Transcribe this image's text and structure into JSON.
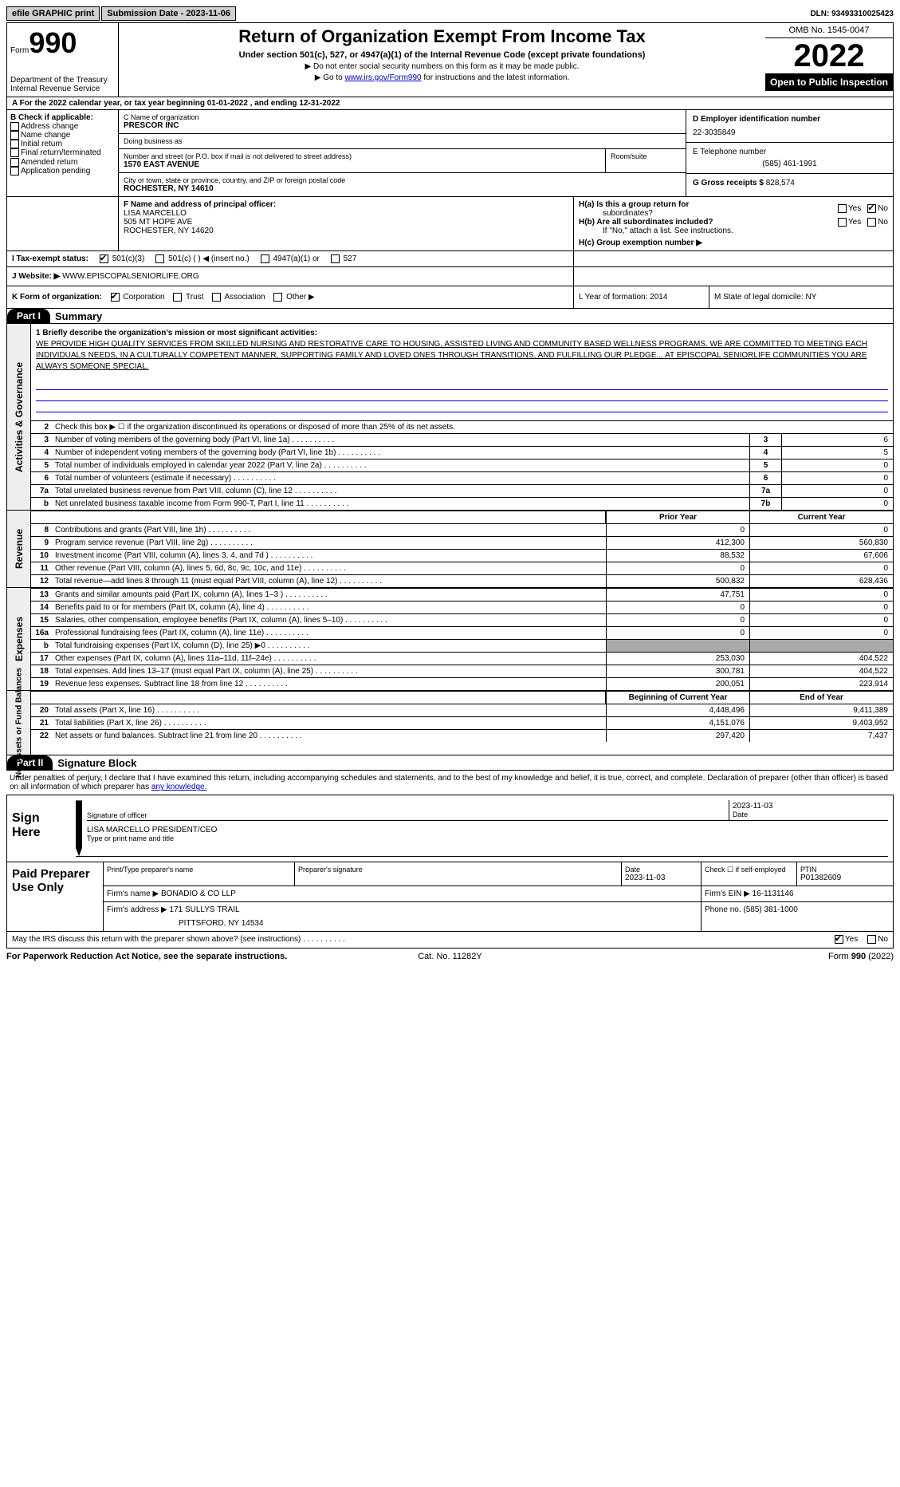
{
  "topbar": {
    "efile": "efile GRAPHIC print",
    "submission": "Submission Date - 2023-11-06",
    "dln_label": "DLN:",
    "dln": "93493310025423"
  },
  "header": {
    "form_label": "Form",
    "form_num": "990",
    "dept": "Department of the Treasury",
    "irs": "Internal Revenue Service",
    "title": "Return of Organization Exempt From Income Tax",
    "sub1": "Under section 501(c), 527, or 4947(a)(1) of the Internal Revenue Code (except private foundations)",
    "sub2": "▶ Do not enter social security numbers on this form as it may be made public.",
    "sub3": "▶ Go to ",
    "link": "www.irs.gov/Form990",
    "sub3b": " for instructions and the latest information.",
    "omb": "OMB No. 1545-0047",
    "year": "2022",
    "open": "Open to Public Inspection"
  },
  "row_a": "A For the 2022 calendar year, or tax year beginning 01-01-2022    , and ending 12-31-2022",
  "col_b": {
    "hdr": "B Check if applicable:",
    "items": [
      "Address change",
      "Name change",
      "Initial return",
      "Final return/terminated",
      "Amended return",
      "Application pending"
    ]
  },
  "col_c": {
    "name_lbl": "C Name of organization",
    "name": "PRESCOR INC",
    "dba_lbl": "Doing business as",
    "dba": "",
    "street_lbl": "Number and street (or P.O. box if mail is not delivered to street address)",
    "street": "1570 EAST AVENUE",
    "room_lbl": "Room/suite",
    "city_lbl": "City or town, state or province, country, and ZIP or foreign postal code",
    "city": "ROCHESTER, NY  14610"
  },
  "col_d": {
    "ein_lbl": "D Employer identification number",
    "ein": "22-3035849",
    "phone_lbl": "E Telephone number",
    "phone": "(585) 461-1991",
    "gross_lbl": "G Gross receipts $",
    "gross": "828,574"
  },
  "col_f": {
    "lbl": "F  Name and address of principal officer:",
    "name": "LISA MARCELLO",
    "addr1": "505 MT HOPE AVE",
    "addr2": "ROCHESTER, NY  14620"
  },
  "col_h": {
    "ha": "H(a)  Is this a group return for",
    "ha2": "subordinates?",
    "hb": "H(b)  Are all subordinates included?",
    "hb2": "If \"No,\" attach a list. See instructions.",
    "hc": "H(c)  Group exemption number ▶",
    "yes": "Yes",
    "no": "No"
  },
  "row_i": {
    "lbl": "I   Tax-exempt status:",
    "o1": "501(c)(3)",
    "o2": "501(c) (  ) ◀ (insert no.)",
    "o3": "4947(a)(1) or",
    "o4": "527"
  },
  "row_j": {
    "lbl": "J   Website: ▶",
    "val": "WWW.EPISCOPALSENIORLIFE.ORG"
  },
  "row_k": {
    "lbl": "K Form of organization:",
    "o1": "Corporation",
    "o2": "Trust",
    "o3": "Association",
    "o4": "Other ▶"
  },
  "row_l": {
    "lbl": "L Year of formation:",
    "val": "2014"
  },
  "row_m": {
    "lbl": "M State of legal domicile:",
    "val": "NY"
  },
  "part1": {
    "hdr": "Part I",
    "title": "Summary"
  },
  "mission": {
    "lbl": "1  Briefly describe the organization's mission or most significant activities:",
    "text": "WE PROVIDE HIGH QUALITY SERVICES FROM SKILLED NURSING AND RESTORATIVE CARE TO HOUSING, ASSISTED LIVING AND COMMUNITY BASED WELLNESS PROGRAMS. WE ARE COMMITTED TO MEETING EACH INDIVIDUALS NEEDS, IN A CULTURALLY COMPETENT MANNER, SUPPORTING FAMILY AND LOVED ONES THROUGH TRANSITIONS, AND FULFILLING OUR PLEDGE... AT EPISCOPAL SENIORLIFE COMMUNITIES YOU ARE ALWAYS SOMEONE SPECIAL."
  },
  "gov": {
    "r2": "Check this box ▶ ☐  if the organization discontinued its operations or disposed of more than 25% of its net assets.",
    "rows": [
      {
        "n": "3",
        "t": "Number of voting members of the governing body (Part VI, line 1a)",
        "box": "3",
        "v": "6"
      },
      {
        "n": "4",
        "t": "Number of independent voting members of the governing body (Part VI, line 1b)",
        "box": "4",
        "v": "5"
      },
      {
        "n": "5",
        "t": "Total number of individuals employed in calendar year 2022 (Part V, line 2a)",
        "box": "5",
        "v": "0"
      },
      {
        "n": "6",
        "t": "Total number of volunteers (estimate if necessary)",
        "box": "6",
        "v": "0"
      },
      {
        "n": "7a",
        "t": "Total unrelated business revenue from Part VIII, column (C), line 12",
        "box": "7a",
        "v": "0"
      },
      {
        "n": "b",
        "t": "Net unrelated business taxable income from Form 990-T, Part I, line 11",
        "box": "7b",
        "v": "0"
      }
    ]
  },
  "vtabs": {
    "gov": "Activities & Governance",
    "rev": "Revenue",
    "exp": "Expenses",
    "net": "Net Assets or Fund Balances"
  },
  "cols": {
    "prior": "Prior Year",
    "curr": "Current Year",
    "begin": "Beginning of Current Year",
    "end": "End of Year"
  },
  "rev": [
    {
      "n": "8",
      "t": "Contributions and grants (Part VIII, line 1h)",
      "p": "0",
      "c": "0"
    },
    {
      "n": "9",
      "t": "Program service revenue (Part VIII, line 2g)",
      "p": "412,300",
      "c": "560,830"
    },
    {
      "n": "10",
      "t": "Investment income (Part VIII, column (A), lines 3, 4, and 7d )",
      "p": "88,532",
      "c": "67,606"
    },
    {
      "n": "11",
      "t": "Other revenue (Part VIII, column (A), lines 5, 6d, 8c, 9c, 10c, and 11e)",
      "p": "0",
      "c": "0"
    },
    {
      "n": "12",
      "t": "Total revenue—add lines 8 through 11 (must equal Part VIII, column (A), line 12)",
      "p": "500,832",
      "c": "628,436"
    }
  ],
  "exp": [
    {
      "n": "13",
      "t": "Grants and similar amounts paid (Part IX, column (A), lines 1–3 )",
      "p": "47,751",
      "c": "0"
    },
    {
      "n": "14",
      "t": "Benefits paid to or for members (Part IX, column (A), line 4)",
      "p": "0",
      "c": "0"
    },
    {
      "n": "15",
      "t": "Salaries, other compensation, employee benefits (Part IX, column (A), lines 5–10)",
      "p": "0",
      "c": "0"
    },
    {
      "n": "16a",
      "t": "Professional fundraising fees (Part IX, column (A), line 11e)",
      "p": "0",
      "c": "0"
    },
    {
      "n": "b",
      "t": "Total fundraising expenses (Part IX, column (D), line 25) ▶0",
      "p": "grey",
      "c": "grey"
    },
    {
      "n": "17",
      "t": "Other expenses (Part IX, column (A), lines 11a–11d, 11f–24e)",
      "p": "253,030",
      "c": "404,522"
    },
    {
      "n": "18",
      "t": "Total expenses. Add lines 13–17 (must equal Part IX, column (A), line 25)",
      "p": "300,781",
      "c": "404,522"
    },
    {
      "n": "19",
      "t": "Revenue less expenses. Subtract line 18 from line 12",
      "p": "200,051",
      "c": "223,914"
    }
  ],
  "net": [
    {
      "n": "20",
      "t": "Total assets (Part X, line 16)",
      "p": "4,448,496",
      "c": "9,411,389"
    },
    {
      "n": "21",
      "t": "Total liabilities (Part X, line 26)",
      "p": "4,151,076",
      "c": "9,403,952"
    },
    {
      "n": "22",
      "t": "Net assets or fund balances. Subtract line 21 from line 20",
      "p": "297,420",
      "c": "7,437"
    }
  ],
  "part2": {
    "hdr": "Part II",
    "title": "Signature Block"
  },
  "sig": {
    "decl": "Under penalties of perjury, I declare that I have examined this return, including accompanying schedules and statements, and to the best of my knowledge and belief, it is true, correct, and complete. Declaration of preparer (other than officer) is based on all information of which preparer has ",
    "decl2": "any knowledge.",
    "sign_here": "Sign Here",
    "sig_lbl": "Signature of officer",
    "date_lbl": "Date",
    "date": "2023-11-03",
    "name": "LISA MARCELLO  PRESIDENT/CEO",
    "name_lbl": "Type or print name and title"
  },
  "prep": {
    "lbl": "Paid Preparer Use Only",
    "r1": {
      "c1": "Print/Type preparer's name",
      "c2": "Preparer's signature",
      "c3_lbl": "Date",
      "c3": "2023-11-03",
      "c4": "Check ☐ if self-employed",
      "c5_lbl": "PTIN",
      "c5": "P01382609"
    },
    "r2": {
      "lbl": "Firm's name    ▶",
      "val": "BONADIO & CO LLP",
      "ein_lbl": "Firm's EIN ▶",
      "ein": "16-1131146"
    },
    "r3": {
      "lbl": "Firm's address ▶",
      "val1": "171 SULLYS TRAIL",
      "val2": "PITTSFORD, NY  14534",
      "ph_lbl": "Phone no.",
      "ph": "(585) 381-1000"
    }
  },
  "footer": {
    "q": "May the IRS discuss this return with the preparer shown above? (see instructions)",
    "yes": "Yes",
    "no": "No"
  },
  "final": {
    "f1": "For Paperwork Reduction Act Notice, see the separate instructions.",
    "f2": "Cat. No. 11282Y",
    "f3": "Form 990 (2022)"
  }
}
